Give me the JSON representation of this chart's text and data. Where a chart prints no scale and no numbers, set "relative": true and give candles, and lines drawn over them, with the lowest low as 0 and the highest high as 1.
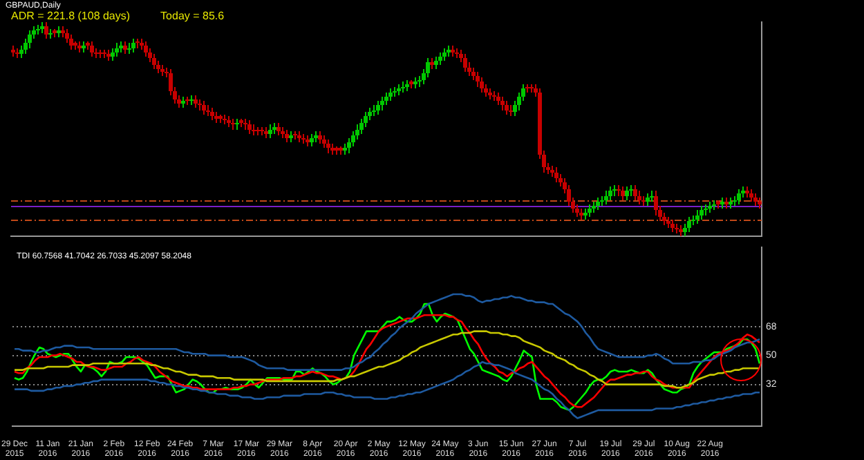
{
  "chart_data": [
    {
      "type": "candlestick",
      "title": "GBPAUD,Daily",
      "annotations": [
        "ADR = 221.8 (108 days)",
        "Today = 85.6"
      ],
      "relative": true,
      "tick_labels": false,
      "categories": [
        null,
        null,
        null,
        null,
        null,
        null,
        null,
        null,
        null,
        null,
        null,
        null,
        null,
        null,
        null,
        null,
        null,
        null,
        null,
        null,
        null,
        null,
        null,
        null,
        null,
        null,
        null,
        null,
        null,
        null,
        null,
        null,
        null,
        null,
        null,
        null,
        null,
        null,
        null,
        null,
        null,
        null,
        null,
        null,
        null,
        null,
        null,
        null,
        null,
        null,
        null,
        null,
        null,
        null,
        null,
        null,
        null,
        null,
        null,
        null,
        null,
        null,
        null,
        null,
        null,
        null,
        null,
        null,
        null,
        null,
        null,
        null,
        null,
        null,
        null,
        null,
        null,
        null,
        null,
        null,
        null,
        null,
        null,
        null,
        null,
        null,
        null,
        null,
        null,
        null,
        null,
        null,
        null,
        null,
        null,
        null,
        null,
        null,
        null,
        null,
        null,
        null,
        null,
        null,
        null,
        null,
        null,
        null,
        null,
        null,
        null,
        null,
        null,
        null,
        null,
        null,
        null,
        null,
        null,
        null,
        null,
        null,
        null,
        null,
        null,
        null,
        null,
        null,
        null,
        null,
        null,
        null,
        null,
        null,
        null,
        null,
        null,
        null,
        null,
        null,
        null,
        null,
        null,
        null,
        null,
        null,
        null,
        null,
        null,
        null,
        null,
        null,
        null,
        null,
        null,
        null,
        null,
        null,
        null,
        null,
        null,
        null,
        null,
        null,
        null,
        null,
        null,
        null,
        null,
        null,
        null,
        null,
        null,
        null,
        null,
        null,
        null,
        null,
        null,
        null,
        null
      ],
      "ohlc": [
        [
          0.87,
          0.89,
          0.84,
          0.86
        ],
        [
          0.86,
          0.88,
          0.83,
          0.85
        ],
        [
          0.85,
          0.89,
          0.83,
          0.87
        ],
        [
          0.87,
          0.92,
          0.85,
          0.9
        ],
        [
          0.9,
          0.96,
          0.88,
          0.94
        ],
        [
          0.94,
          0.98,
          0.92,
          0.96
        ],
        [
          0.96,
          0.99,
          0.94,
          0.97
        ],
        [
          0.97,
          1,
          0.95,
          0.98
        ],
        [
          0.98,
          1,
          0.92,
          0.94
        ],
        [
          0.94,
          0.97,
          0.92,
          0.95
        ],
        [
          0.96,
          0.97,
          0.93,
          0.95
        ],
        [
          0.95,
          0.98,
          0.93,
          0.96
        ],
        [
          0.96,
          0.98,
          0.93,
          0.95
        ],
        [
          0.95,
          0.97,
          0.9,
          0.92
        ],
        [
          0.92,
          0.94,
          0.87,
          0.89
        ],
        [
          0.9,
          0.91,
          0.87,
          0.89
        ],
        [
          0.89,
          0.91,
          0.86,
          0.88
        ],
        [
          0.88,
          0.91,
          0.86,
          0.89
        ],
        [
          0.9,
          0.91,
          0.87,
          0.89
        ],
        [
          0.89,
          0.91,
          0.84,
          0.86
        ],
        [
          0.86,
          0.88,
          0.83,
          0.85
        ],
        [
          0.86,
          0.87,
          0.83,
          0.85
        ],
        [
          0.86,
          0.87,
          0.83,
          0.85
        ],
        [
          0.85,
          0.87,
          0.82,
          0.84
        ],
        [
          0.84,
          0.88,
          0.82,
          0.86
        ],
        [
          0.86,
          0.9,
          0.84,
          0.88
        ],
        [
          0.88,
          0.91,
          0.86,
          0.89
        ],
        [
          0.89,
          0.91,
          0.85,
          0.87
        ],
        [
          0.87,
          0.9,
          0.85,
          0.88
        ],
        [
          0.88,
          0.92,
          0.86,
          0.9
        ],
        [
          0.91,
          0.92,
          0.88,
          0.9
        ],
        [
          0.9,
          0.92,
          0.87,
          0.89
        ],
        [
          0.89,
          0.91,
          0.84,
          0.86
        ],
        [
          0.86,
          0.88,
          0.81,
          0.83
        ],
        [
          0.83,
          0.85,
          0.78,
          0.8
        ],
        [
          0.8,
          0.82,
          0.76,
          0.78
        ],
        [
          0.78,
          0.8,
          0.75,
          0.77
        ],
        [
          0.77,
          0.79,
          0.74,
          0.76
        ],
        [
          0.76,
          0.78,
          0.66,
          0.68
        ],
        [
          0.68,
          0.7,
          0.62,
          0.64
        ],
        [
          0.64,
          0.66,
          0.6,
          0.62
        ],
        [
          0.62,
          0.65,
          0.6,
          0.63
        ],
        [
          0.64,
          0.65,
          0.61,
          0.63
        ],
        [
          0.63,
          0.66,
          0.61,
          0.64
        ],
        [
          0.64,
          0.66,
          0.6,
          0.62
        ],
        [
          0.62,
          0.64,
          0.59,
          0.61
        ],
        [
          0.61,
          0.63,
          0.57,
          0.59
        ],
        [
          0.59,
          0.61,
          0.56,
          0.58
        ],
        [
          0.58,
          0.6,
          0.54,
          0.56
        ],
        [
          0.56,
          0.58,
          0.53,
          0.55
        ],
        [
          0.56,
          0.57,
          0.53,
          0.55
        ],
        [
          0.55,
          0.57,
          0.52,
          0.54
        ],
        [
          0.54,
          0.56,
          0.51,
          0.53
        ],
        [
          0.53,
          0.55,
          0.5,
          0.52
        ],
        [
          0.52,
          0.55,
          0.5,
          0.53
        ],
        [
          0.54,
          0.55,
          0.51,
          0.53
        ],
        [
          0.53,
          0.55,
          0.5,
          0.52
        ],
        [
          0.52,
          0.54,
          0.48,
          0.5
        ],
        [
          0.5,
          0.52,
          0.47,
          0.49
        ],
        [
          0.5,
          0.51,
          0.47,
          0.49
        ],
        [
          0.5,
          0.51,
          0.47,
          0.49
        ],
        [
          0.49,
          0.51,
          0.46,
          0.48
        ],
        [
          0.48,
          0.52,
          0.46,
          0.5
        ],
        [
          0.5,
          0.53,
          0.48,
          0.51
        ],
        [
          0.51,
          0.53,
          0.47,
          0.49
        ],
        [
          0.49,
          0.51,
          0.46,
          0.48
        ],
        [
          0.48,
          0.5,
          0.44,
          0.46
        ],
        [
          0.46,
          0.49,
          0.44,
          0.47
        ],
        [
          0.48,
          0.49,
          0.45,
          0.47
        ],
        [
          0.47,
          0.49,
          0.44,
          0.46
        ],
        [
          0.46,
          0.48,
          0.43,
          0.45
        ],
        [
          0.45,
          0.47,
          0.42,
          0.44
        ],
        [
          0.44,
          0.48,
          0.42,
          0.46
        ],
        [
          0.46,
          0.49,
          0.44,
          0.47
        ],
        [
          0.47,
          0.49,
          0.43,
          0.45
        ],
        [
          0.45,
          0.47,
          0.41,
          0.43
        ],
        [
          0.43,
          0.45,
          0.39,
          0.41
        ],
        [
          0.41,
          0.43,
          0.38,
          0.4
        ],
        [
          0.41,
          0.42,
          0.38,
          0.4
        ],
        [
          0.41,
          0.42,
          0.38,
          0.4
        ],
        [
          0.4,
          0.43,
          0.38,
          0.41
        ],
        [
          0.41,
          0.46,
          0.39,
          0.44
        ],
        [
          0.44,
          0.49,
          0.42,
          0.47
        ],
        [
          0.47,
          0.52,
          0.45,
          0.5
        ],
        [
          0.5,
          0.55,
          0.48,
          0.53
        ],
        [
          0.53,
          0.58,
          0.51,
          0.56
        ],
        [
          0.56,
          0.6,
          0.54,
          0.58
        ],
        [
          0.58,
          0.61,
          0.56,
          0.59
        ],
        [
          0.59,
          0.63,
          0.57,
          0.61
        ],
        [
          0.61,
          0.65,
          0.59,
          0.63
        ],
        [
          0.63,
          0.67,
          0.61,
          0.65
        ],
        [
          0.65,
          0.69,
          0.63,
          0.67
        ],
        [
          0.67,
          0.7,
          0.65,
          0.68
        ],
        [
          0.68,
          0.71,
          0.66,
          0.69
        ],
        [
          0.69,
          0.72,
          0.67,
          0.7
        ],
        [
          0.7,
          0.73,
          0.68,
          0.71
        ],
        [
          0.72,
          0.73,
          0.69,
          0.71
        ],
        [
          0.71,
          0.74,
          0.69,
          0.72
        ],
        [
          0.72,
          0.75,
          0.7,
          0.73
        ],
        [
          0.73,
          0.78,
          0.71,
          0.76
        ],
        [
          0.76,
          0.83,
          0.74,
          0.81
        ],
        [
          0.81,
          0.83,
          0.78,
          0.8
        ],
        [
          0.8,
          0.84,
          0.78,
          0.82
        ],
        [
          0.82,
          0.86,
          0.8,
          0.84
        ],
        [
          0.84,
          0.88,
          0.82,
          0.86
        ],
        [
          0.86,
          0.89,
          0.84,
          0.87
        ],
        [
          0.87,
          0.89,
          0.84,
          0.86
        ],
        [
          0.86,
          0.88,
          0.83,
          0.85
        ],
        [
          0.85,
          0.87,
          0.81,
          0.83
        ],
        [
          0.83,
          0.85,
          0.77,
          0.79
        ],
        [
          0.79,
          0.81,
          0.75,
          0.77
        ],
        [
          0.77,
          0.79,
          0.73,
          0.75
        ],
        [
          0.75,
          0.77,
          0.7,
          0.72
        ],
        [
          0.72,
          0.74,
          0.67,
          0.69
        ],
        [
          0.69,
          0.71,
          0.65,
          0.67
        ],
        [
          0.67,
          0.69,
          0.64,
          0.66
        ],
        [
          0.66,
          0.68,
          0.63,
          0.65
        ],
        [
          0.65,
          0.67,
          0.61,
          0.63
        ],
        [
          0.63,
          0.65,
          0.59,
          0.61
        ],
        [
          0.61,
          0.63,
          0.57,
          0.59
        ],
        [
          0.59,
          0.61,
          0.56,
          0.58
        ],
        [
          0.58,
          0.63,
          0.56,
          0.61
        ],
        [
          0.61,
          0.67,
          0.59,
          0.65
        ],
        [
          0.65,
          0.71,
          0.63,
          0.69
        ],
        [
          0.7,
          0.71,
          0.67,
          0.69
        ],
        [
          0.7,
          0.71,
          0.67,
          0.69
        ],
        [
          0.69,
          0.71,
          0.65,
          0.67
        ],
        [
          0.67,
          0.69,
          0.36,
          0.38
        ],
        [
          0.38,
          0.4,
          0.3,
          0.32
        ],
        [
          0.32,
          0.34,
          0.29,
          0.31
        ],
        [
          0.31,
          0.33,
          0.28,
          0.3
        ],
        [
          0.3,
          0.32,
          0.25,
          0.27
        ],
        [
          0.27,
          0.29,
          0.23,
          0.25
        ],
        [
          0.25,
          0.27,
          0.2,
          0.22
        ],
        [
          0.22,
          0.24,
          0.14,
          0.16
        ],
        [
          0.16,
          0.18,
          0.11,
          0.13
        ],
        [
          0.13,
          0.15,
          0.09,
          0.11
        ],
        [
          0.11,
          0.13,
          0.08,
          0.1
        ],
        [
          0.1,
          0.13,
          0.08,
          0.11
        ],
        [
          0.11,
          0.15,
          0.09,
          0.13
        ],
        [
          0.13,
          0.16,
          0.11,
          0.14
        ],
        [
          0.14,
          0.18,
          0.12,
          0.16
        ],
        [
          0.16,
          0.19,
          0.14,
          0.17
        ],
        [
          0.17,
          0.21,
          0.15,
          0.19
        ],
        [
          0.19,
          0.23,
          0.17,
          0.21
        ],
        [
          0.21,
          0.24,
          0.19,
          0.22
        ],
        [
          0.22,
          0.24,
          0.19,
          0.21
        ],
        [
          0.21,
          0.23,
          0.17,
          0.19
        ],
        [
          0.19,
          0.23,
          0.17,
          0.21
        ],
        [
          0.21,
          0.24,
          0.19,
          0.22
        ],
        [
          0.22,
          0.24,
          0.17,
          0.19
        ],
        [
          0.19,
          0.21,
          0.15,
          0.17
        ],
        [
          0.17,
          0.19,
          0.14,
          0.16
        ],
        [
          0.16,
          0.2,
          0.14,
          0.18
        ],
        [
          0.18,
          0.21,
          0.16,
          0.19
        ],
        [
          0.19,
          0.21,
          0.1,
          0.12
        ],
        [
          0.12,
          0.14,
          0.07,
          0.09
        ],
        [
          0.09,
          0.11,
          0.05,
          0.07
        ],
        [
          0.07,
          0.09,
          0.04,
          0.06
        ],
        [
          0.06,
          0.08,
          0.02,
          0.04
        ],
        [
          0.04,
          0.06,
          0.01,
          0.03
        ],
        [
          0.03,
          0.05,
          0,
          0.02
        ],
        [
          0.02,
          0.06,
          0,
          0.04
        ],
        [
          0.04,
          0.09,
          0.02,
          0.07
        ],
        [
          0.07,
          0.1,
          0.05,
          0.08
        ],
        [
          0.08,
          0.12,
          0.06,
          0.1
        ],
        [
          0.1,
          0.14,
          0.08,
          0.12
        ],
        [
          0.12,
          0.15,
          0.1,
          0.13
        ],
        [
          0.13,
          0.16,
          0.11,
          0.14
        ],
        [
          0.14,
          0.17,
          0.12,
          0.15
        ],
        [
          0.16,
          0.17,
          0.13,
          0.15
        ],
        [
          0.15,
          0.18,
          0.13,
          0.16
        ],
        [
          0.16,
          0.18,
          0.13,
          0.15
        ],
        [
          0.15,
          0.18,
          0.13,
          0.16
        ],
        [
          0.16,
          0.19,
          0.14,
          0.17
        ],
        [
          0.17,
          0.22,
          0.15,
          0.2
        ],
        [
          0.2,
          0.23,
          0.18,
          0.21
        ],
        [
          0.21,
          0.23,
          0.18,
          0.2
        ],
        [
          0.2,
          0.22,
          0.16,
          0.18
        ],
        [
          0.18,
          0.2,
          0.14,
          0.16
        ],
        [
          0.16,
          0.18,
          0.13,
          0.15
        ]
      ],
      "ref_lines": [
        {
          "axis": "y",
          "value": 0.17,
          "color": "#c04818",
          "line_style": "dashed"
        },
        {
          "axis": "y",
          "value": 0.14,
          "color": "#7a1fc8",
          "line_style": "solid"
        },
        {
          "axis": "y",
          "value": 0.08,
          "color": "#c04818",
          "line_style": "dashed"
        }
      ]
    },
    {
      "type": "line",
      "title": "TDI 60.7568 41.7042 26.7033 45.2097 58.2048",
      "ylim": [
        6,
        117
      ],
      "yticks": [
        32,
        50,
        68
      ],
      "grid": "y",
      "categories": [
        "29 Dec 2015",
        null,
        null,
        null,
        null,
        null,
        null,
        null,
        "11 Jan 2016",
        null,
        null,
        null,
        null,
        null,
        null,
        null,
        "21 Jan 2016",
        null,
        null,
        null,
        null,
        null,
        null,
        null,
        "2 Feb 2016",
        null,
        null,
        null,
        null,
        null,
        null,
        null,
        "12 Feb 2016",
        null,
        null,
        null,
        null,
        null,
        null,
        null,
        "24 Feb 2016",
        null,
        null,
        null,
        null,
        null,
        null,
        null,
        "7 Mar 2016",
        null,
        null,
        null,
        null,
        null,
        null,
        null,
        "17 Mar 2016",
        null,
        null,
        null,
        null,
        null,
        null,
        null,
        "29 Mar 2016",
        null,
        null,
        null,
        null,
        null,
        null,
        null,
        "8 Apr 2016",
        null,
        null,
        null,
        null,
        null,
        null,
        null,
        "20 Apr 2016",
        null,
        null,
        null,
        null,
        null,
        null,
        null,
        "2 May 2016",
        null,
        null,
        null,
        null,
        null,
        null,
        null,
        "12 May 2016",
        null,
        null,
        null,
        null,
        null,
        null,
        null,
        "24 May 2016",
        null,
        null,
        null,
        null,
        null,
        null,
        null,
        "3 Jun 2016",
        null,
        null,
        null,
        null,
        null,
        null,
        null,
        "15 Jun 2016",
        null,
        null,
        null,
        null,
        null,
        null,
        null,
        "27 Jun 2016",
        null,
        null,
        null,
        null,
        null,
        null,
        null,
        "7 Jul 2016",
        null,
        null,
        null,
        null,
        null,
        null,
        null,
        "19 Jul 2016",
        null,
        null,
        null,
        null,
        null,
        null,
        null,
        "29 Jul 2016",
        null,
        null,
        null,
        null,
        null,
        null,
        null,
        "10 Aug 2016",
        null,
        null,
        null,
        null,
        null,
        null,
        null,
        "22 Aug 2016",
        null,
        null,
        null,
        null,
        null,
        null,
        null,
        null,
        null,
        null,
        null,
        null
      ],
      "series": [
        {
          "color": "#1e5aa0",
          "values": [
            54,
            54,
            53,
            53,
            53,
            52,
            52,
            53,
            53,
            54,
            55,
            55,
            56,
            56,
            56,
            55,
            55,
            55,
            55,
            54,
            54,
            54,
            54,
            54,
            54,
            54,
            54,
            54,
            54,
            54,
            54,
            54,
            54,
            54,
            54,
            54,
            54,
            54,
            54,
            54,
            53,
            52,
            52,
            51,
            51,
            51,
            51,
            50,
            50,
            50,
            50,
            50,
            49,
            49,
            49,
            49,
            48,
            47,
            46,
            44,
            43,
            42,
            42,
            42,
            42,
            42,
            41,
            41,
            41,
            41,
            41,
            41,
            41,
            41,
            41,
            41,
            41,
            41,
            41,
            41,
            42,
            42,
            43,
            45,
            46,
            48,
            49,
            52,
            54,
            57,
            59,
            62,
            64,
            67,
            69,
            71,
            73,
            76,
            78,
            80,
            82,
            83,
            84,
            85,
            86,
            87,
            88,
            88,
            88,
            87,
            87,
            86,
            84,
            83,
            84,
            84,
            85,
            85,
            86,
            86,
            87,
            86,
            86,
            85,
            84,
            84,
            83,
            83,
            83,
            82,
            82,
            80,
            78,
            76,
            75,
            73,
            71,
            68,
            64,
            61,
            57,
            54,
            53,
            52,
            51,
            50,
            49,
            49,
            49,
            49,
            49,
            49,
            49,
            50,
            50,
            51,
            50,
            48,
            47,
            45,
            45,
            45,
            45,
            45,
            46,
            46,
            46,
            47,
            47,
            48,
            50,
            51,
            52,
            53,
            55,
            56,
            57,
            58,
            58,
            59,
            60
          ]
        },
        {
          "color": "#1e5aa0",
          "values": [
            29,
            29,
            29,
            29,
            28,
            28,
            28,
            28,
            29,
            29,
            30,
            30,
            31,
            31,
            31,
            32,
            32,
            33,
            33,
            34,
            34,
            35,
            35,
            35,
            35,
            35,
            35,
            35,
            35,
            35,
            35,
            35,
            35,
            34,
            34,
            33,
            33,
            32,
            32,
            31,
            31,
            30,
            30,
            29,
            29,
            28,
            28,
            27,
            27,
            26,
            26,
            26,
            25,
            25,
            25,
            24,
            24,
            24,
            23,
            23,
            23,
            24,
            24,
            24,
            24,
            25,
            25,
            25,
            25,
            25,
            26,
            26,
            26,
            26,
            26,
            27,
            27,
            27,
            26,
            26,
            25,
            25,
            24,
            24,
            24,
            24,
            24,
            23,
            23,
            23,
            23,
            24,
            24,
            25,
            25,
            26,
            26,
            27,
            27,
            28,
            29,
            30,
            31,
            32,
            33,
            34,
            35,
            37,
            38,
            40,
            41,
            43,
            44,
            46,
            45,
            45,
            44,
            44,
            43,
            42,
            41,
            39,
            38,
            37,
            36,
            35,
            33,
            31,
            29,
            28,
            26,
            23,
            21,
            18,
            16,
            13,
            11,
            12,
            13,
            14,
            15,
            16,
            16,
            16,
            16,
            16,
            16,
            16,
            16,
            16,
            16,
            16,
            16,
            16,
            16,
            17,
            17,
            17,
            17,
            17,
            18,
            18,
            19,
            19,
            20,
            20,
            21,
            21,
            22,
            22,
            23,
            23,
            24,
            24,
            25,
            25,
            26,
            26,
            26,
            27,
            27
          ]
        },
        {
          "color": "#c8c800",
          "values": [
            41,
            41,
            41,
            42,
            42,
            42,
            42,
            42,
            43,
            43,
            43,
            43,
            43,
            43,
            44,
            44,
            44,
            44,
            44,
            45,
            45,
            45,
            45,
            45,
            45,
            45,
            45,
            45,
            45,
            45,
            45,
            45,
            45,
            44,
            44,
            43,
            42,
            42,
            41,
            40,
            40,
            39,
            38,
            38,
            38,
            37,
            37,
            37,
            37,
            36,
            36,
            36,
            36,
            35,
            35,
            35,
            35,
            35,
            35,
            35,
            35,
            34,
            34,
            34,
            34,
            34,
            34,
            34,
            34,
            34,
            34,
            34,
            34,
            34,
            34,
            34,
            34,
            34,
            35,
            35,
            36,
            37,
            37,
            38,
            39,
            40,
            41,
            42,
            43,
            43,
            44,
            45,
            46,
            47,
            49,
            50,
            52,
            53,
            55,
            56,
            57,
            58,
            59,
            60,
            61,
            62,
            63,
            63,
            64,
            64,
            64,
            65,
            65,
            65,
            65,
            64,
            64,
            64,
            63,
            63,
            62,
            62,
            61,
            59,
            58,
            57,
            56,
            55,
            53,
            52,
            51,
            49,
            48,
            47,
            45,
            44,
            42,
            41,
            40,
            38,
            37,
            35,
            34,
            32,
            32,
            32,
            32,
            32,
            32,
            32,
            32,
            32,
            32,
            32,
            32,
            32,
            32,
            31,
            31,
            31,
            30,
            30,
            31,
            32,
            33,
            35,
            36,
            37,
            38,
            38,
            39,
            39,
            40,
            40,
            41,
            41,
            42,
            42,
            42,
            42,
            42
          ]
        },
        {
          "color": "#ff0000",
          "values": [
            40,
            39,
            39,
            42,
            44,
            47,
            49,
            49,
            49,
            50,
            50,
            51,
            50,
            49,
            48,
            46,
            46,
            44,
            43,
            43,
            42,
            41,
            41,
            42,
            43,
            43,
            43,
            45,
            46,
            48,
            49,
            47,
            46,
            45,
            43,
            40,
            38,
            36,
            34,
            33,
            32,
            31,
            31,
            30,
            30,
            29,
            29,
            29,
            29,
            29,
            29,
            29,
            29,
            30,
            30,
            31,
            31,
            32,
            32,
            33,
            34,
            35,
            35,
            35,
            35,
            36,
            36,
            36,
            37,
            37,
            38,
            39,
            40,
            39,
            39,
            38,
            37,
            37,
            36,
            35,
            36,
            37,
            40,
            44,
            49,
            54,
            57,
            61,
            65,
            67,
            68,
            69,
            70,
            71,
            72,
            73,
            73,
            73,
            74,
            75,
            75,
            75,
            75,
            75,
            75,
            74,
            74,
            72,
            71,
            67,
            64,
            60,
            57,
            52,
            48,
            45,
            43,
            40,
            39,
            37,
            39,
            40,
            42,
            43,
            45,
            46,
            43,
            40,
            37,
            35,
            32,
            29,
            26,
            24,
            21,
            19,
            18,
            18,
            20,
            22,
            24,
            27,
            30,
            33,
            35,
            35,
            36,
            37,
            38,
            38,
            39,
            39,
            40,
            40,
            37,
            35,
            34,
            32,
            31,
            30,
            30,
            30,
            30,
            30,
            34,
            37,
            40,
            43,
            46,
            49,
            51,
            52,
            53,
            54,
            56,
            58,
            61,
            63,
            62,
            60,
            58
          ]
        },
        {
          "color": "#00ff00",
          "values": [
            36,
            35,
            36,
            40,
            46,
            51,
            55,
            54,
            51,
            50,
            49,
            50,
            51,
            51,
            47,
            43,
            40,
            44,
            43,
            42,
            40,
            37,
            40,
            46,
            45,
            45,
            46,
            49,
            49,
            49,
            48,
            46,
            44,
            40,
            36,
            37,
            37,
            37,
            32,
            27,
            28,
            29,
            32,
            35,
            34,
            32,
            29,
            27,
            27,
            29,
            29,
            30,
            29,
            29,
            29,
            30,
            32,
            35,
            32,
            30,
            33,
            36,
            36,
            36,
            36,
            35,
            35,
            35,
            40,
            40,
            38,
            40,
            42,
            40,
            39,
            37,
            34,
            32,
            33,
            35,
            36,
            40,
            50,
            55,
            60,
            65,
            65,
            65,
            65,
            68,
            71,
            71,
            72,
            74,
            72,
            71,
            71,
            73,
            76,
            82,
            82,
            75,
            71,
            74,
            76,
            75,
            74,
            72,
            66,
            60,
            54,
            51,
            46,
            41,
            40,
            39,
            38,
            37,
            35,
            34,
            37,
            42,
            47,
            53,
            51,
            49,
            32,
            23,
            23,
            23,
            23,
            21,
            18,
            17,
            16,
            18,
            21,
            24,
            27,
            31,
            34,
            35,
            35,
            37,
            40,
            41,
            40,
            40,
            40,
            41,
            40,
            39,
            39,
            41,
            39,
            35,
            32,
            29,
            28,
            27,
            27,
            29,
            30,
            32,
            39,
            43,
            46,
            48,
            50,
            52,
            52,
            52,
            54,
            55,
            56,
            57,
            60,
            60,
            58,
            54,
            45
          ]
        }
      ]
    }
  ]
}
